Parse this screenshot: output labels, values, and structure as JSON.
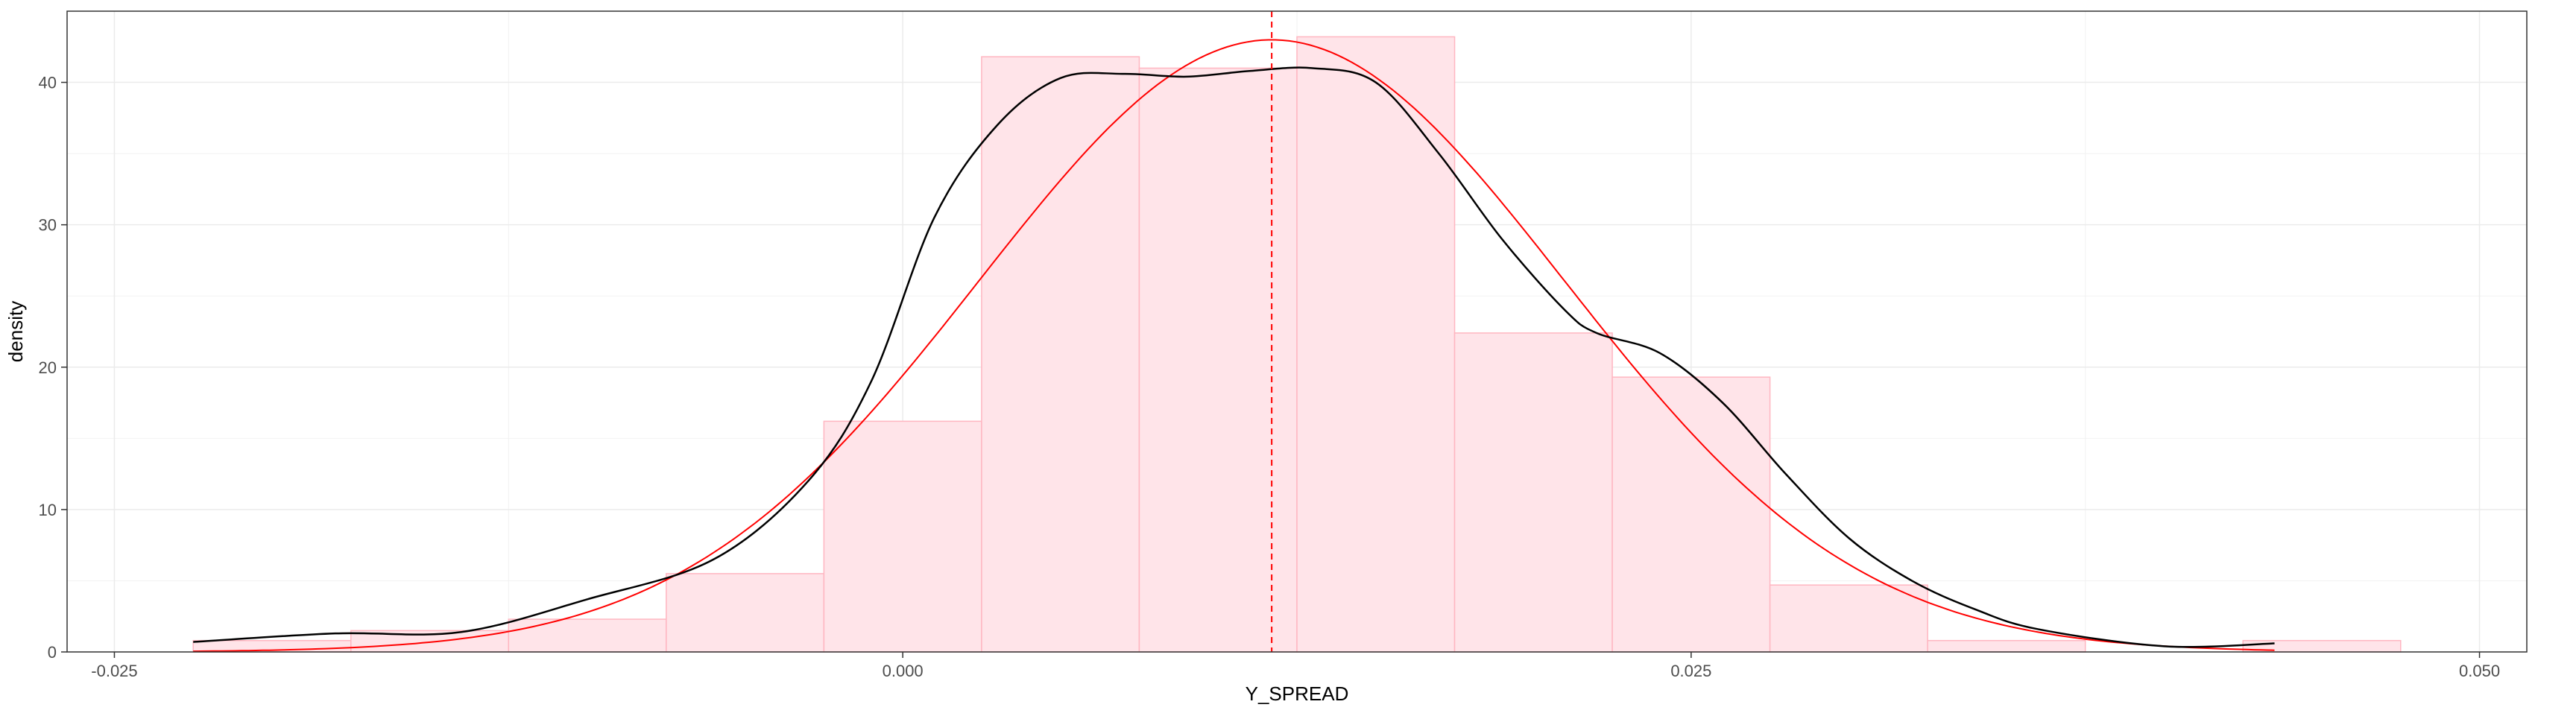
{
  "chart_data": {
    "type": "histogram",
    "title": "",
    "xlabel": "Y_SPREAD",
    "ylabel": "density",
    "xlim": [
      -0.0265,
      0.0515
    ],
    "ylim": [
      0,
      45
    ],
    "x_ticks": [
      -0.025,
      0.0,
      0.025,
      0.05
    ],
    "x_tick_labels": [
      "-0.025",
      "0.000",
      "0.025",
      "0.050"
    ],
    "y_ticks": [
      0,
      10,
      20,
      30,
      40
    ],
    "y_tick_labels": [
      "0",
      "10",
      "20",
      "30",
      "40"
    ],
    "grid": true,
    "legend": "none",
    "histogram": {
      "bin_edges": [
        -0.0225,
        -0.0175,
        -0.0125,
        -0.0075,
        -0.0025,
        0.0025,
        0.0075,
        0.0125,
        0.0175,
        0.0225,
        0.0275,
        0.0325,
        0.0375,
        0.0425,
        0.0475
      ],
      "density": [
        0.8,
        1.5,
        2.3,
        5.5,
        16.2,
        41.8,
        41.0,
        43.2,
        22.4,
        19.3,
        4.7,
        0.8,
        0.0,
        0.8
      ],
      "fill": "#ffe4e9",
      "stroke": "#ffb6c1"
    },
    "kde": {
      "color": "#000000",
      "x": [
        -0.0225,
        -0.018,
        -0.014,
        -0.01,
        -0.006,
        -0.003,
        -0.001,
        0.001,
        0.003,
        0.005,
        0.007,
        0.009,
        0.011,
        0.013,
        0.015,
        0.017,
        0.019,
        0.021,
        0.022,
        0.024,
        0.026,
        0.028,
        0.03,
        0.032,
        0.034,
        0.036,
        0.04,
        0.0435
      ],
      "y": [
        0.7,
        1.3,
        1.4,
        3.7,
        6.5,
        12.0,
        19.0,
        30.5,
        37.0,
        40.3,
        40.6,
        40.4,
        40.8,
        41.0,
        40.0,
        35.0,
        29.0,
        24.0,
        22.4,
        21.0,
        17.5,
        12.5,
        8.0,
        5.0,
        3.0,
        1.6,
        0.4,
        0.6
      ]
    },
    "normal_fit": {
      "color": "#ff0000",
      "mean": 0.0117,
      "sd": 0.00928,
      "x_range": [
        -0.0225,
        0.0435
      ]
    },
    "mean_line": {
      "x": 0.0117,
      "color": "#ff0000",
      "style": "dashed"
    }
  }
}
